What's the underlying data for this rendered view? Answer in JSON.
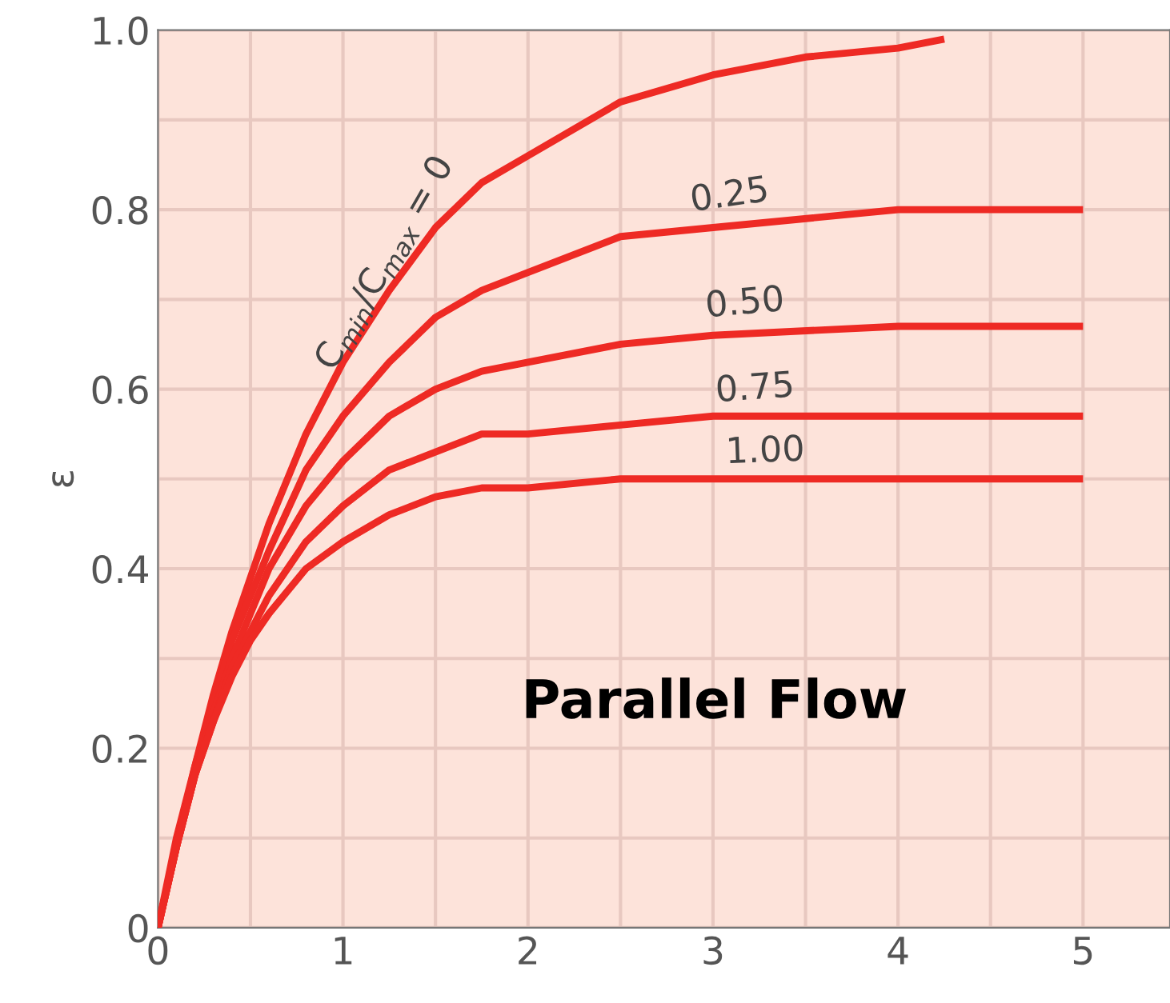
{
  "chart_data": {
    "type": "line",
    "ylabel": "ε",
    "x": [
      0,
      0.1,
      0.2,
      0.3,
      0.4,
      0.5,
      0.6,
      0.8,
      1,
      1.25,
      1.5,
      1.75,
      2,
      2.5,
      3,
      4,
      5
    ],
    "series": [
      {
        "color": "#ee2a24",
        "x": [
          0,
          0.1,
          0.2,
          0.3,
          0.4,
          0.5,
          0.6,
          0.8,
          1,
          1.25,
          1.5,
          1.75,
          2,
          2.5,
          3,
          3.5,
          4,
          4.25
        ],
        "values": [
          0,
          0.1,
          0.18,
          0.26,
          0.33,
          0.39,
          0.45,
          0.55,
          0.63,
          0.71,
          0.78,
          0.83,
          0.86,
          0.92,
          0.95,
          0.97,
          0.98,
          0.99
        ]
      },
      {
        "color": "#ee2a24",
        "values": [
          0,
          0.09,
          0.18,
          0.25,
          0.32,
          0.37,
          0.42,
          0.51,
          0.57,
          0.63,
          0.68,
          0.71,
          0.73,
          0.77,
          0.78,
          0.8,
          0.8
        ]
      },
      {
        "color": "#ee2a24",
        "values": [
          0,
          0.09,
          0.17,
          0.24,
          0.3,
          0.35,
          0.4,
          0.47,
          0.52,
          0.57,
          0.6,
          0.62,
          0.63,
          0.65,
          0.66,
          0.67,
          0.67
        ]
      },
      {
        "color": "#ee2a24",
        "values": [
          0,
          0.09,
          0.17,
          0.23,
          0.29,
          0.33,
          0.37,
          0.43,
          0.47,
          0.51,
          0.53,
          0.55,
          0.55,
          0.56,
          0.57,
          0.57,
          0.57
        ]
      },
      {
        "color": "#ee2a24",
        "values": [
          0,
          0.09,
          0.17,
          0.23,
          0.28,
          0.32,
          0.35,
          0.4,
          0.43,
          0.46,
          0.48,
          0.49,
          0.49,
          0.5,
          0.5,
          0.5,
          0.5
        ]
      }
    ],
    "annotations": [
      "C$_{min}$/C$_{max}$ = 0",
      "0.25",
      "0.50",
      "0.75",
      "1.00",
      "Parallel Flow"
    ],
    "xlim": [
      0,
      5.47
    ],
    "ylim": [
      0,
      1.0
    ],
    "xticks": [
      0,
      {
        "value": 0.5,
        "label": null
      },
      1,
      {
        "value": 1.5,
        "label": null
      },
      2,
      {
        "value": 2.5,
        "label": null
      },
      3,
      {
        "value": 3.5,
        "label": null
      },
      4,
      {
        "value": 4.5,
        "label": null
      },
      5
    ],
    "yticks": [
      0,
      {
        "value": 0.1,
        "label": null
      },
      0.2,
      {
        "value": 0.3,
        "label": null
      },
      0.4,
      {
        "value": 0.5,
        "label": null
      },
      0.6,
      {
        "value": 0.7,
        "label": null
      },
      0.8,
      {
        "value": 0.9,
        "label": null
      },
      {
        "value": 1.0,
        "label": "1.0"
      }
    ],
    "grid": true,
    "line_style": "solid",
    "marker": "none"
  }
}
